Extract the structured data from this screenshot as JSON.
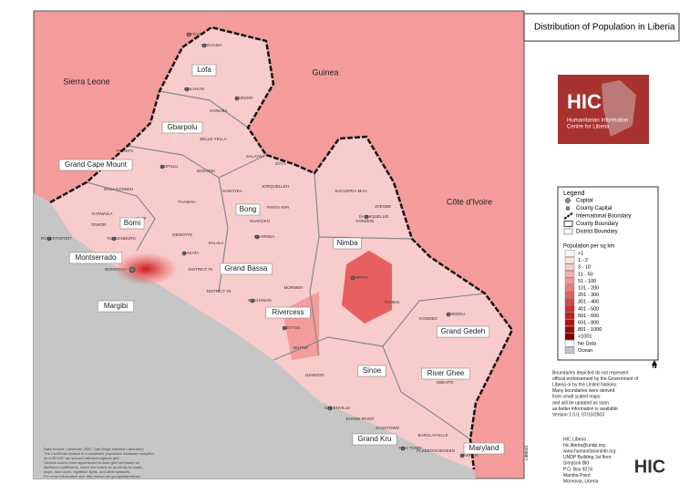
{
  "title": "Distribution of Population in Liberia",
  "map": {
    "countries": [
      "Sierra Leone",
      "Guinea",
      "Côte d'Ivoire"
    ],
    "counties": [
      "Lofa",
      "Gbarpolu",
      "Grand Cape Mount",
      "Bomi",
      "Bong",
      "Montserrado",
      "Margibi",
      "Grand Bassa",
      "Nimba",
      "Rivercess",
      "Grand Gedeh",
      "Sinoe",
      "River Ghee",
      "Grand Kru",
      "Maryland"
    ],
    "places": [
      "MONROVIA",
      "ROBERTSPORT",
      "VOINJAMA",
      "ZORZOR",
      "KOLAHUN",
      "FOYA",
      "BOPOLU",
      "GBARNGA",
      "SANNIQUELLIE",
      "TAPPITA",
      "ZWEDRU",
      "GREENVILLE",
      "HARPER",
      "FISH TOWN",
      "TUBMANBURG",
      "KAKATA",
      "BUCHANAN",
      "CESTOS"
    ],
    "districts": [
      "KONGBA",
      "BELLE YELLA",
      "PORKPA",
      "BOKOMU",
      "SALAYEA",
      "GOLA KONNEH",
      "GARWULA",
      "TEWOR",
      "KLAY",
      "DEWOYIN",
      "FUAMAH",
      "SANOYEA",
      "SUAKOKO",
      "JORQUELLEH",
      "ZOTA",
      "PANTA-KPA",
      "SACLEPEA-MAH",
      "YARWEIN",
      "JOEGBE",
      "KONOBO",
      "TCHIEN",
      "BUTAW",
      "JUARZON",
      "DUGBE RIVER",
      "SASSTOWN",
      "BARCLAYVILLE",
      "PLEEBO/SODOKEN",
      "GBEAPO",
      "DISTRICT #1",
      "DISTRICT #4",
      "MORWEH",
      "SALALA"
    ]
  },
  "legend": {
    "title": "Legend",
    "items": [
      "Capital",
      "County Capital",
      "International Boundary",
      "County Boundary",
      "District Boundary"
    ],
    "population_title": "Population per sq km",
    "classes": [
      {
        "label": ">1",
        "color": "#fff4f4"
      },
      {
        "label": "1 - 2",
        "color": "#fde2e2"
      },
      {
        "label": "3 - 10",
        "color": "#fbcaca"
      },
      {
        "label": "11 - 50",
        "color": "#f8b0b0"
      },
      {
        "label": "51 - 100",
        "color": "#f59696"
      },
      {
        "label": "101 - 200",
        "color": "#f07a7a"
      },
      {
        "label": "201 - 300",
        "color": "#ea5e5e"
      },
      {
        "label": "301 - 400",
        "color": "#e24444"
      },
      {
        "label": "401 - 500",
        "color": "#d82c2c"
      },
      {
        "label": "501 - 600",
        "color": "#c81c1c"
      },
      {
        "label": "601 - 800",
        "color": "#b41010"
      },
      {
        "label": "801 - 1000",
        "color": "#9c0808"
      },
      {
        "label": ">1001",
        "color": "#800000"
      },
      {
        "label": "No Data",
        "color": "#ffffff"
      },
      {
        "label": "Ocean",
        "color": "#c6c6c6"
      }
    ]
  },
  "logo": {
    "name": "HIC",
    "line1": "Humanitarian Information",
    "line2": "Centre for Liberia"
  },
  "disclaimer": [
    "Boundaries depicted do not represent",
    "official endorsement by the Government of",
    "Liberia or by the United Nations.",
    "Many boundaries were derived",
    "from small scaled maps",
    "and will be updated as soon",
    "as better information is available.",
    "Version 1.0.0, 07/10/2003"
  ],
  "source": [
    "Data Source: LandScan 2001, Oak Ridge National Laboratory",
    "The LandScan dataset is a worldwide population database compiled",
    "on a 30\"x30\" arc second latitude/longitude grid.",
    "Census counts were apportioned to each grid cell based on",
    "likelihood coefficients, which are based on proximity to roads,",
    "slope, land cover, nighttime lights, and other datasets.",
    "For more information see: http://www.ornl.gov/gist/landscan/"
  ],
  "contact": [
    "HIC Liberia",
    "hic.liberia@undp.org",
    "www.humanitarianinfo.org",
    "UNDP Building 1st floor",
    "Simpson Bld",
    "P.O. Box 9274",
    "Mamba Point",
    "Monrovia, Liberia"
  ],
  "north": "N",
  "code": "LIB0031"
}
